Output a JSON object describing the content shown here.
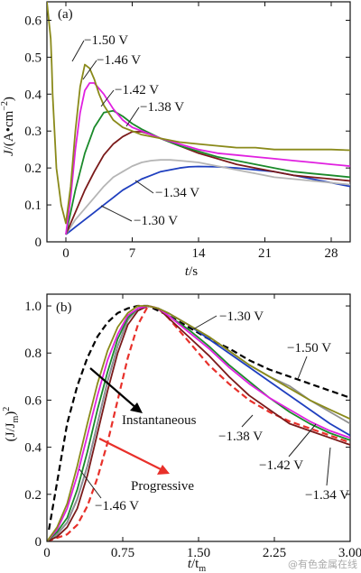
{
  "watermark": "@有色金属在线",
  "chart_data": [
    {
      "type": "line",
      "panel": "(a)",
      "xlabel_main": "t",
      "xlabel_unit": "/s",
      "ylabel_main": "J",
      "ylabel_unit": "/(A•cm",
      "ylabel_sup": "−2",
      "ylabel_close": ")",
      "xlim": [
        -2,
        30
      ],
      "ylim": [
        0,
        0.65
      ],
      "xticks": [
        0,
        7,
        14,
        21,
        28
      ],
      "yticks": [
        0,
        0.1,
        0.2,
        0.3,
        0.4,
        0.5,
        0.6
      ],
      "ytick_labels": [
        "0",
        "0.1",
        "0.2",
        "0.3",
        "0.4",
        "0.5",
        "0.6"
      ],
      "series": [
        {
          "name": "−1.30 V",
          "color": "#1f3fbf",
          "x": [
            0,
            0.5,
            1,
            2,
            3,
            4,
            5,
            6,
            7,
            8,
            9,
            10,
            11,
            12,
            13,
            14,
            16,
            18,
            20,
            22,
            24,
            26,
            28,
            30
          ],
          "y": [
            0.02,
            0.03,
            0.04,
            0.06,
            0.08,
            0.1,
            0.12,
            0.14,
            0.155,
            0.17,
            0.18,
            0.19,
            0.195,
            0.2,
            0.203,
            0.204,
            0.203,
            0.2,
            0.195,
            0.19,
            0.18,
            0.17,
            0.16,
            0.15
          ]
        },
        {
          "name": "−1.34 V",
          "color": "#b5b5b5",
          "x": [
            0,
            0.5,
            1,
            2,
            3,
            4,
            5,
            6,
            7,
            8,
            9,
            10,
            11,
            12,
            14,
            16,
            18,
            20,
            22,
            24,
            26,
            28,
            30
          ],
          "y": [
            0.02,
            0.04,
            0.06,
            0.09,
            0.12,
            0.15,
            0.175,
            0.19,
            0.205,
            0.215,
            0.22,
            0.222,
            0.222,
            0.22,
            0.215,
            0.205,
            0.195,
            0.185,
            0.175,
            0.17,
            0.165,
            0.16,
            0.155
          ]
        },
        {
          "name": "−1.38 V",
          "color": "#7a1a1a",
          "x": [
            0,
            0.5,
            1,
            2,
            3,
            4,
            5,
            6,
            7,
            8,
            9,
            10,
            12,
            14,
            16,
            18,
            20,
            22,
            24,
            26,
            28,
            30
          ],
          "y": [
            0.02,
            0.05,
            0.08,
            0.14,
            0.19,
            0.235,
            0.265,
            0.285,
            0.298,
            0.298,
            0.29,
            0.28,
            0.26,
            0.24,
            0.225,
            0.21,
            0.2,
            0.19,
            0.18,
            0.175,
            0.17,
            0.165
          ]
        },
        {
          "name": "−1.42 V",
          "color": "#1a8a2a",
          "x": [
            0,
            0.5,
            1,
            2,
            3,
            4,
            5,
            6,
            7,
            8,
            10,
            12,
            14,
            16,
            18,
            20,
            22,
            24,
            26,
            28,
            30
          ],
          "y": [
            0.02,
            0.08,
            0.14,
            0.24,
            0.31,
            0.35,
            0.355,
            0.34,
            0.32,
            0.305,
            0.28,
            0.26,
            0.245,
            0.23,
            0.22,
            0.21,
            0.2,
            0.19,
            0.185,
            0.18,
            0.175
          ]
        },
        {
          "name": "−1.46 V",
          "color": "#e020e0",
          "x": [
            0,
            0.5,
            1,
            1.5,
            2,
            2.5,
            3,
            4,
            5,
            6,
            7,
            8,
            10,
            12,
            14,
            16,
            18,
            20,
            22,
            24,
            26,
            28,
            30
          ],
          "y": [
            0.02,
            0.12,
            0.25,
            0.35,
            0.41,
            0.43,
            0.43,
            0.4,
            0.36,
            0.33,
            0.31,
            0.3,
            0.28,
            0.265,
            0.25,
            0.24,
            0.235,
            0.23,
            0.225,
            0.22,
            0.215,
            0.21,
            0.205
          ]
        },
        {
          "name": "−1.50 V",
          "color": "#8a8a1a",
          "x": [
            -2,
            -1.8,
            -1.6,
            -1.5,
            -1.4,
            -1.2,
            -1,
            -0.5,
            0,
            0.5,
            1,
            1.5,
            2,
            2.5,
            3,
            3.5,
            4,
            5,
            6,
            7,
            8,
            10,
            12,
            14,
            16,
            18,
            20,
            22,
            24,
            26,
            28,
            30
          ],
          "y": [
            0.65,
            0.6,
            0.55,
            0.48,
            0.4,
            0.3,
            0.2,
            0.1,
            0.05,
            0.15,
            0.3,
            0.42,
            0.48,
            0.47,
            0.44,
            0.4,
            0.37,
            0.33,
            0.31,
            0.3,
            0.29,
            0.28,
            0.27,
            0.265,
            0.26,
            0.255,
            0.255,
            0.25,
            0.25,
            0.25,
            0.25,
            0.248
          ]
        }
      ],
      "annotations": [
        "−1.50 V",
        "−1.46 V",
        "−1.42 V",
        "−1.38 V",
        "−1.34 V",
        "−1.30 V"
      ]
    },
    {
      "type": "line",
      "panel": "(b)",
      "xlabel_main": "t",
      "xlabel_unit": "/t",
      "xlabel_sub": "m",
      "ylabel_open": "(J/J",
      "ylabel_sub": "m",
      "ylabel_close": ")",
      "ylabel_sup": "2",
      "xlim": [
        0,
        3
      ],
      "ylim": [
        0,
        1.05
      ],
      "xticks": [
        0,
        0.75,
        1.5,
        2.25,
        3.0
      ],
      "xtick_labels": [
        "0",
        "0.75",
        "1.50",
        "2.25",
        "3.00"
      ],
      "yticks": [
        0,
        0.2,
        0.4,
        0.6,
        0.8,
        1.0
      ],
      "ytick_labels": [
        "0",
        "0.2",
        "0.4",
        "0.6",
        "0.8",
        "1.0"
      ],
      "model_text": [
        "Instantaneous",
        "Progressive"
      ],
      "model_arrow_colors": [
        "#000000",
        "#e8302a"
      ],
      "series": [
        {
          "name": "Instantaneous",
          "style": "dashed",
          "color": "#000000",
          "x": [
            0.02,
            0.1,
            0.2,
            0.3,
            0.4,
            0.5,
            0.6,
            0.7,
            0.8,
            0.9,
            1.0,
            1.2,
            1.4,
            1.6,
            1.8,
            2.0,
            2.2,
            2.4,
            2.6,
            2.8,
            3.0
          ],
          "y": [
            0.05,
            0.25,
            0.5,
            0.66,
            0.78,
            0.87,
            0.93,
            0.97,
            0.99,
            1.0,
            1.0,
            0.96,
            0.91,
            0.86,
            0.82,
            0.77,
            0.73,
            0.7,
            0.67,
            0.64,
            0.61
          ]
        },
        {
          "name": "Progressive",
          "style": "dashed",
          "color": "#e8302a",
          "x": [
            0,
            0.2,
            0.3,
            0.4,
            0.5,
            0.6,
            0.7,
            0.8,
            0.9,
            1.0,
            1.1,
            1.2,
            1.4,
            1.6,
            1.8,
            2.0,
            2.2,
            2.4,
            2.6,
            2.8,
            3.0
          ],
          "y": [
            0,
            0.03,
            0.07,
            0.15,
            0.27,
            0.42,
            0.6,
            0.78,
            0.92,
            1.0,
            0.99,
            0.95,
            0.85,
            0.75,
            0.67,
            0.6,
            0.55,
            0.51,
            0.48,
            0.45,
            0.42
          ]
        },
        {
          "name": "−1.30 V",
          "color": "#1f3fbf",
          "x": [
            0,
            0.1,
            0.2,
            0.3,
            0.4,
            0.5,
            0.6,
            0.7,
            0.8,
            0.9,
            1.0,
            1.1,
            1.2,
            1.4,
            1.6,
            1.8,
            2.0,
            2.2,
            2.4,
            2.6,
            2.8,
            3.0
          ],
          "y": [
            0,
            0.03,
            0.08,
            0.18,
            0.32,
            0.5,
            0.68,
            0.83,
            0.94,
            0.99,
            1.0,
            0.99,
            0.97,
            0.92,
            0.86,
            0.8,
            0.74,
            0.68,
            0.62,
            0.56,
            0.5,
            0.45
          ]
        },
        {
          "name": "−1.34 V",
          "color": "#909090",
          "x": [
            0,
            0.1,
            0.2,
            0.3,
            0.4,
            0.5,
            0.6,
            0.7,
            0.8,
            0.9,
            1.0,
            1.1,
            1.2,
            1.4,
            1.6,
            1.8,
            2.0,
            2.2,
            2.4,
            2.6,
            2.8,
            3.0
          ],
          "y": [
            0,
            0.03,
            0.08,
            0.18,
            0.32,
            0.5,
            0.68,
            0.83,
            0.94,
            0.99,
            1.0,
            0.99,
            0.97,
            0.92,
            0.87,
            0.81,
            0.75,
            0.7,
            0.66,
            0.6,
            0.55,
            0.5
          ]
        },
        {
          "name": "−1.38 V",
          "color": "#7a1a1a",
          "x": [
            0,
            0.1,
            0.2,
            0.3,
            0.4,
            0.5,
            0.6,
            0.7,
            0.8,
            0.9,
            1.0,
            1.1,
            1.2,
            1.4,
            1.6,
            1.8,
            2.0,
            2.2,
            2.4,
            2.6,
            2.8,
            3.0
          ],
          "y": [
            0,
            0.02,
            0.06,
            0.14,
            0.28,
            0.46,
            0.64,
            0.8,
            0.92,
            0.98,
            1.0,
            0.99,
            0.95,
            0.87,
            0.79,
            0.7,
            0.62,
            0.56,
            0.5,
            0.47,
            0.44,
            0.41
          ]
        },
        {
          "name": "−1.42 V",
          "color": "#1a8a2a",
          "x": [
            0,
            0.1,
            0.2,
            0.3,
            0.4,
            0.5,
            0.6,
            0.7,
            0.8,
            0.9,
            1.0,
            1.1,
            1.2,
            1.4,
            1.6,
            1.8,
            2.0,
            2.2,
            2.4,
            2.6,
            2.8,
            3.0
          ],
          "y": [
            0,
            0.04,
            0.1,
            0.22,
            0.38,
            0.56,
            0.72,
            0.86,
            0.95,
            0.99,
            1.0,
            0.99,
            0.96,
            0.9,
            0.83,
            0.75,
            0.68,
            0.61,
            0.55,
            0.5,
            0.46,
            0.43
          ]
        },
        {
          "name": "−1.46 V",
          "color": "#e020e0",
          "x": [
            0,
            0.1,
            0.2,
            0.3,
            0.4,
            0.5,
            0.6,
            0.7,
            0.8,
            0.9,
            1.0,
            1.1,
            1.2,
            1.4,
            1.6,
            1.8,
            2.0,
            2.2,
            2.4,
            2.6,
            2.8,
            3.0
          ],
          "y": [
            0,
            0.05,
            0.14,
            0.28,
            0.45,
            0.62,
            0.77,
            0.88,
            0.96,
            0.99,
            1.0,
            0.99,
            0.96,
            0.89,
            0.82,
            0.74,
            0.67,
            0.61,
            0.56,
            0.51,
            0.47,
            0.44
          ]
        },
        {
          "name": "−1.50 V",
          "color": "#8a8a1a",
          "x": [
            0,
            0.1,
            0.2,
            0.3,
            0.4,
            0.5,
            0.6,
            0.7,
            0.8,
            0.9,
            1.0,
            1.1,
            1.2,
            1.4,
            1.6,
            1.8,
            2.0,
            2.2,
            2.4,
            2.6,
            2.8,
            3.0
          ],
          "y": [
            0,
            0.06,
            0.16,
            0.32,
            0.5,
            0.67,
            0.81,
            0.91,
            0.97,
            1.0,
            1.0,
            0.99,
            0.97,
            0.92,
            0.87,
            0.81,
            0.75,
            0.7,
            0.65,
            0.6,
            0.56,
            0.52
          ]
        }
      ],
      "annotations": [
        "−1.30 V",
        "−1.50 V",
        "−1.38 V",
        "−1.42 V",
        "−1.34 V",
        "−1.46 V"
      ]
    }
  ]
}
